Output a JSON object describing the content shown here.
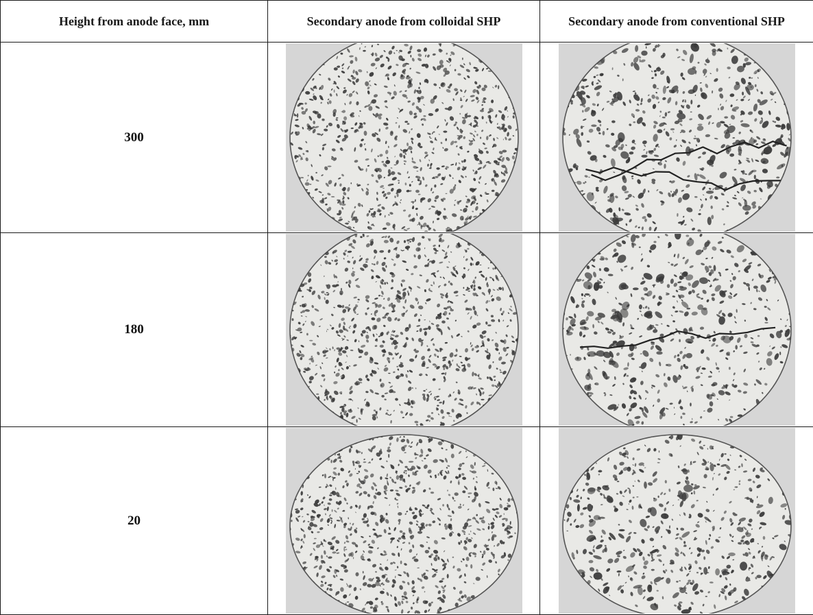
{
  "table": {
    "headers": [
      "Height from anode face, mm",
      "Secondary anode from colloidal SHP",
      "Secondary anode from conventional SHP"
    ],
    "rows": [
      {
        "height": "300",
        "colloidal_cracks": 0,
        "conventional_cracks": 2
      },
      {
        "height": "180",
        "colloidal_cracks": 0,
        "conventional_cracks": 1
      },
      {
        "height": "20",
        "colloidal_cracks": 0,
        "conventional_cracks": 0
      }
    ]
  },
  "colors": {
    "border": "#1a1a1a",
    "photo_background": "#d6d6d6",
    "sample_surface": "#e9e9e6",
    "pore": "#3a3a3a"
  }
}
